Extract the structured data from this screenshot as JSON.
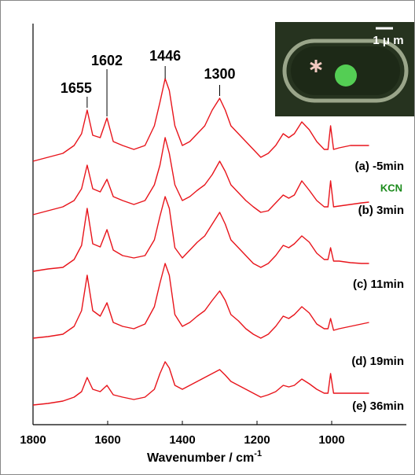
{
  "chart_data": {
    "type": "line",
    "xlabel": "Wavenumber / cm",
    "xlabel_superscript": "-1",
    "xlim": [
      1800,
      800
    ],
    "xticks": [
      1800,
      1600,
      1400,
      1200,
      1000
    ],
    "ylim": [
      0,
      510
    ],
    "peak_labels": [
      1655,
      1602,
      1446,
      1300
    ],
    "annotation": "KCN",
    "annotation_color": "#1a8a1a",
    "inset_scale_label": "1 μ m",
    "x": [
      1800,
      1760,
      1720,
      1690,
      1670,
      1655,
      1640,
      1620,
      1602,
      1585,
      1560,
      1530,
      1500,
      1475,
      1460,
      1446,
      1435,
      1420,
      1400,
      1380,
      1360,
      1340,
      1320,
      1300,
      1285,
      1270,
      1250,
      1230,
      1210,
      1190,
      1170,
      1150,
      1130,
      1115,
      1100,
      1080,
      1060,
      1040,
      1020,
      1010,
      1003,
      995,
      980,
      950,
      920,
      900
    ],
    "series": [
      {
        "name": "(a) -5min",
        "color": "#e8141b",
        "values": [
          335,
          340,
          345,
          355,
          370,
          400,
          368,
          365,
          390,
          360,
          355,
          350,
          355,
          380,
          410,
          440,
          425,
          380,
          355,
          360,
          370,
          380,
          400,
          415,
          400,
          380,
          370,
          360,
          350,
          340,
          345,
          355,
          370,
          365,
          370,
          385,
          375,
          360,
          350,
          350,
          380,
          350,
          352,
          355,
          355,
          355
        ]
      },
      {
        "name": "(b)  3min",
        "color": "#e8141b",
        "values": [
          267,
          272,
          277,
          285,
          300,
          330,
          300,
          296,
          312,
          290,
          285,
          280,
          285,
          305,
          330,
          365,
          345,
          305,
          285,
          290,
          298,
          305,
          318,
          335,
          322,
          305,
          295,
          285,
          277,
          270,
          272,
          282,
          292,
          288,
          292,
          310,
          298,
          285,
          277,
          277,
          310,
          277,
          278,
          280,
          282,
          283
        ]
      },
      {
        "name": "(c) 11min",
        "color": "#e8141b",
        "values": [
          195,
          198,
          200,
          210,
          228,
          275,
          230,
          226,
          248,
          222,
          215,
          212,
          215,
          235,
          265,
          290,
          275,
          225,
          212,
          222,
          232,
          240,
          255,
          270,
          255,
          235,
          225,
          215,
          205,
          200,
          205,
          215,
          228,
          225,
          230,
          240,
          232,
          218,
          210,
          210,
          225,
          208,
          208,
          206,
          205,
          205
        ]
      },
      {
        "name": "(d) 19min",
        "color": "#e8141b",
        "values": [
          110,
          112,
          115,
          125,
          145,
          190,
          145,
          138,
          155,
          130,
          125,
          122,
          128,
          150,
          180,
          205,
          190,
          140,
          125,
          130,
          138,
          145,
          158,
          170,
          158,
          140,
          132,
          122,
          115,
          110,
          115,
          125,
          138,
          135,
          140,
          150,
          142,
          128,
          122,
          122,
          135,
          120,
          122,
          125,
          128,
          130
        ]
      },
      {
        "name": "(e) 36min",
        "color": "#e8141b",
        "values": [
          25,
          27,
          30,
          35,
          42,
          60,
          45,
          42,
          50,
          38,
          35,
          32,
          35,
          45,
          65,
          80,
          72,
          50,
          45,
          50,
          55,
          60,
          65,
          70,
          63,
          55,
          50,
          45,
          40,
          35,
          38,
          42,
          50,
          48,
          50,
          58,
          52,
          45,
          40,
          40,
          65,
          40,
          40,
          40,
          40,
          40
        ]
      }
    ]
  }
}
